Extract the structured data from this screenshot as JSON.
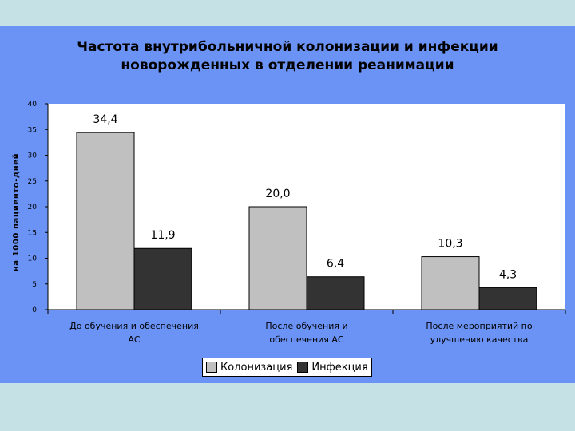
{
  "chart_data": {
    "type": "bar",
    "title_lines": [
      "Частота внутрибольничной колонизации и инфекции",
      "новорожденных в отделении реанимации"
    ],
    "ylabel": "на 1000 пациенто-дней",
    "xlabel": "",
    "ylim": [
      0,
      40
    ],
    "yticks": [
      0,
      5,
      10,
      15,
      20,
      25,
      30,
      35,
      40
    ],
    "category_lines": [
      [
        "До обучения и обеспечения",
        "АС"
      ],
      [
        "После обучения и",
        "обеспечения АС"
      ],
      [
        "После мероприятий по",
        "улучшению качества"
      ]
    ],
    "series": [
      {
        "name": "Колонизация",
        "color": "#c0c0c0",
        "values": [
          34.4,
          20.0,
          10.3
        ],
        "labels": [
          "34,4",
          "20,0",
          "10,3"
        ]
      },
      {
        "name": "Инфекция",
        "color": "#333333",
        "values": [
          11.9,
          6.4,
          4.3
        ],
        "labels": [
          "11,9",
          "6,4",
          "4,3"
        ]
      }
    ],
    "grid": false,
    "legend_position": "bottom"
  }
}
